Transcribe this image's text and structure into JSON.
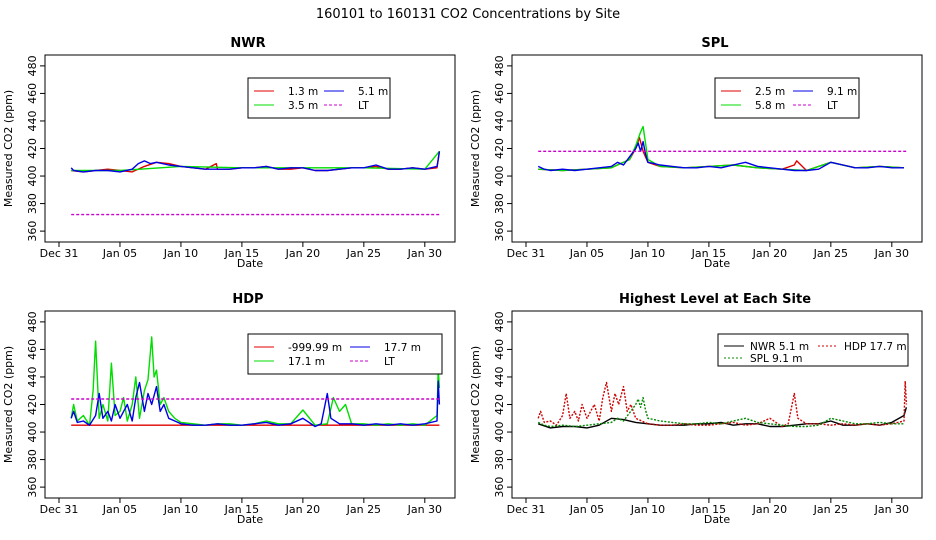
{
  "figure": {
    "title": "160101  to  160131 CO2 Concentrations by Site"
  },
  "colors": {
    "red": "#e00000",
    "green": "#00dd00",
    "blue": "#0000e6",
    "magenta": "#cc00cc",
    "darkgreen": "#008800",
    "black": "#000000",
    "darkred": "#cc0000"
  },
  "chart_data": [
    {
      "id": "nwr",
      "type": "line",
      "title": "NWR",
      "xlabel": "Date",
      "ylabel": "Measured CO2 (ppm)",
      "xlim": [
        0,
        31
      ],
      "ylim": [
        355,
        485
      ],
      "xticks": [
        0,
        5,
        10,
        15,
        20,
        25,
        30
      ],
      "xtick_labels": [
        "Dec 31",
        "Jan 05",
        "Jan 10",
        "Jan 15",
        "Jan 20",
        "Jan 25",
        "Jan 30"
      ],
      "yticks": [
        360,
        380,
        400,
        420,
        440,
        460,
        480
      ],
      "ytick_labels": [
        "360",
        "380",
        "400",
        "420",
        "440",
        "460",
        "480"
      ],
      "legend": [
        "1.3 m",
        "5.1 m",
        "3.5 m",
        "LT"
      ],
      "legend_position": "top-right",
      "series": [
        {
          "name": "1.3 m",
          "color": "red",
          "x": [
            1,
            2,
            3,
            4,
            5,
            6,
            7,
            8,
            9,
            10,
            11,
            12,
            12.9,
            13,
            14,
            15,
            16,
            17,
            18,
            19,
            20,
            21,
            22,
            23,
            24,
            25,
            26,
            27,
            28,
            29,
            30,
            31,
            31.2
          ],
          "y": [
            404,
            403,
            404,
            405,
            404,
            403,
            407,
            410,
            409,
            407,
            406,
            405,
            409,
            405,
            405,
            406,
            406,
            407,
            405,
            405,
            406,
            404,
            404,
            405,
            406,
            406,
            407,
            405,
            405,
            406,
            405,
            406,
            418
          ]
        },
        {
          "name": "3.5 m",
          "color": "green",
          "x": [
            1,
            5,
            10,
            15,
            20,
            25,
            30,
            31.2
          ],
          "y": [
            404,
            404,
            407,
            406,
            406,
            406,
            405,
            418
          ]
        },
        {
          "name": "5.1 m",
          "color": "blue",
          "x": [
            1,
            1.2,
            2,
            3,
            4,
            5,
            6,
            6.5,
            7,
            7.5,
            8,
            9,
            10,
            11,
            12,
            13,
            14,
            15,
            16,
            17,
            18,
            19,
            20,
            21,
            22,
            23,
            24,
            25,
            26,
            27,
            28,
            29,
            30,
            31,
            31.1,
            31.2
          ],
          "y": [
            406,
            404,
            403,
            404,
            404,
            403,
            405,
            409,
            411,
            409,
            410,
            408,
            407,
            406,
            405,
            405,
            405,
            406,
            406,
            407,
            405,
            406,
            406,
            404,
            404,
            405,
            406,
            406,
            408,
            405,
            405,
            406,
            405,
            407,
            412,
            418
          ]
        },
        {
          "name": "LT",
          "color": "magenta",
          "dashed": true,
          "x": [
            1,
            31.2
          ],
          "y": [
            372,
            372
          ]
        }
      ]
    },
    {
      "id": "spl",
      "type": "line",
      "title": "SPL",
      "xlabel": "Date",
      "ylabel": "Measured CO2 (ppm)",
      "xlim": [
        0,
        31
      ],
      "ylim": [
        355,
        485
      ],
      "xticks": [
        0,
        5,
        10,
        15,
        20,
        25,
        30
      ],
      "xtick_labels": [
        "Dec 31",
        "Jan 05",
        "Jan 10",
        "Jan 15",
        "Jan 20",
        "Jan 25",
        "Jan 30"
      ],
      "yticks": [
        360,
        380,
        400,
        420,
        440,
        460,
        480
      ],
      "ytick_labels": [
        "360",
        "380",
        "400",
        "420",
        "440",
        "460",
        "480"
      ],
      "legend": [
        "2.5 m",
        "9.1 m",
        "5.8 m",
        "LT"
      ],
      "legend_position": "top-right",
      "series": [
        {
          "name": "2.5 m",
          "color": "red",
          "x": [
            1,
            3,
            5,
            7,
            8.5,
            9,
            9.3,
            9.6,
            10,
            11,
            13,
            15,
            17,
            19,
            21,
            22,
            22.2,
            23,
            25,
            27,
            29,
            31
          ],
          "y": [
            405,
            404,
            405,
            406,
            412,
            420,
            428,
            418,
            410,
            407,
            406,
            407,
            408,
            406,
            405,
            408,
            411,
            404,
            410,
            406,
            407,
            406
          ]
        },
        {
          "name": "5.8 m",
          "color": "green",
          "x": [
            1,
            3,
            5,
            7,
            8.5,
            9,
            9.4,
            9.6,
            10,
            11,
            13,
            15,
            17,
            19,
            21,
            23,
            25,
            27,
            29,
            31
          ],
          "y": [
            405,
            404,
            405,
            406,
            412,
            422,
            432,
            436,
            412,
            407,
            406,
            407,
            408,
            406,
            405,
            404,
            410,
            406,
            407,
            406
          ]
        },
        {
          "name": "9.1 m",
          "color": "blue",
          "x": [
            1,
            1.5,
            2,
            3,
            4,
            5,
            6,
            7,
            7.5,
            8,
            8.5,
            9,
            9.2,
            9.4,
            9.6,
            9.8,
            10,
            10.5,
            11,
            12,
            13,
            14,
            15,
            16,
            17,
            18,
            19,
            20,
            21,
            22,
            23,
            24,
            25,
            26,
            27,
            28,
            29,
            30,
            31
          ],
          "y": [
            407,
            405,
            404,
            405,
            404,
            405,
            406,
            407,
            410,
            408,
            414,
            420,
            424,
            418,
            425,
            416,
            410,
            409,
            408,
            407,
            406,
            406,
            407,
            406,
            408,
            410,
            407,
            406,
            405,
            404,
            404,
            405,
            410,
            408,
            406,
            406,
            407,
            406,
            406
          ]
        },
        {
          "name": "LT",
          "color": "magenta",
          "dashed": true,
          "x": [
            1,
            31.2
          ],
          "y": [
            418,
            418
          ]
        }
      ]
    },
    {
      "id": "hdp",
      "type": "line",
      "title": "HDP",
      "xlabel": "Date",
      "ylabel": "Measured CO2 (ppm)",
      "xlim": [
        0,
        31
      ],
      "ylim": [
        355,
        485
      ],
      "xticks": [
        0,
        5,
        10,
        15,
        20,
        25,
        30
      ],
      "xtick_labels": [
        "Dec 31",
        "Jan 05",
        "Jan 10",
        "Jan 15",
        "Jan 20",
        "Jan 25",
        "Jan 30"
      ],
      "yticks": [
        360,
        380,
        400,
        420,
        440,
        460,
        480
      ],
      "ytick_labels": [
        "360",
        "380",
        "400",
        "420",
        "440",
        "460",
        "480"
      ],
      "legend": [
        "-999.99 m",
        "17.7 m",
        "17.1 m",
        "LT"
      ],
      "legend_position": "top-right",
      "series": [
        {
          "name": "-999.99 m",
          "color": "red",
          "x": [
            1,
            31.2
          ],
          "y": [
            405,
            405
          ]
        },
        {
          "name": "17.1 m",
          "color": "green",
          "x": [
            1,
            1.2,
            1.5,
            2,
            2.5,
            2.8,
            3,
            3.3,
            3.6,
            4,
            4.3,
            4.6,
            5,
            5.3,
            5.6,
            6,
            6.3,
            6.6,
            7,
            7.3,
            7.6,
            7.8,
            8,
            8.3,
            8.6,
            9,
            9.5,
            10,
            11,
            12,
            13,
            14,
            15,
            16,
            17,
            18,
            19,
            20,
            21,
            22,
            22.5,
            23,
            23.5,
            24,
            25,
            26,
            27,
            28,
            29,
            30,
            31,
            31.1,
            31.2
          ],
          "y": [
            410,
            420,
            408,
            412,
            405,
            430,
            466,
            410,
            420,
            408,
            450,
            412,
            415,
            425,
            408,
            420,
            440,
            410,
            430,
            438,
            469,
            440,
            445,
            420,
            425,
            415,
            410,
            407,
            406,
            405,
            406,
            406,
            405,
            406,
            408,
            406,
            406,
            416,
            405,
            406,
            425,
            415,
            420,
            406,
            406,
            405,
            406,
            405,
            406,
            405,
            412,
            446,
            432
          ]
        },
        {
          "name": "17.7 m",
          "color": "blue",
          "x": [
            1,
            1.2,
            1.5,
            2,
            2.5,
            3,
            3.3,
            3.6,
            4,
            4.3,
            4.6,
            5,
            5.3,
            5.6,
            6,
            6.3,
            6.6,
            7,
            7.3,
            7.6,
            8,
            8.3,
            8.6,
            9,
            9.5,
            10,
            11,
            12,
            13,
            14,
            15,
            16,
            17,
            18,
            19,
            20,
            21,
            21.5,
            22,
            22.3,
            23,
            24,
            25,
            26,
            27,
            28,
            29,
            30,
            31,
            31.1,
            31.2
          ],
          "y": [
            410,
            415,
            407,
            408,
            405,
            412,
            428,
            410,
            415,
            408,
            420,
            410,
            415,
            420,
            408,
            425,
            436,
            415,
            428,
            420,
            433,
            415,
            420,
            410,
            408,
            406,
            405,
            405,
            406,
            405,
            405,
            406,
            407,
            405,
            406,
            410,
            404,
            406,
            428,
            410,
            406,
            406,
            405,
            406,
            405,
            406,
            405,
            406,
            408,
            437,
            420
          ]
        },
        {
          "name": "LT",
          "color": "magenta",
          "dashed": true,
          "x": [
            1,
            31.2
          ],
          "y": [
            424,
            424
          ]
        }
      ]
    },
    {
      "id": "highest",
      "type": "line",
      "title": "Highest Level at Each Site",
      "xlabel": "Date",
      "ylabel": "Measured CO2 (ppm)",
      "xlim": [
        0,
        31
      ],
      "ylim": [
        355,
        485
      ],
      "xticks": [
        0,
        5,
        10,
        15,
        20,
        25,
        30
      ],
      "xtick_labels": [
        "Dec 31",
        "Jan 05",
        "Jan 10",
        "Jan 15",
        "Jan 20",
        "Jan 25",
        "Jan 30"
      ],
      "yticks": [
        360,
        380,
        400,
        420,
        440,
        460,
        480
      ],
      "ytick_labels": [
        "360",
        "380",
        "400",
        "420",
        "440",
        "460",
        "480"
      ],
      "legend": [
        "NWR  5.1 m",
        "HDP  17.7 m",
        "SPL  9.1 m"
      ],
      "legend_position": "top-right",
      "series": [
        {
          "name": "NWR  5.1 m",
          "color": "black",
          "x": [
            1,
            2,
            3,
            4,
            5,
            6,
            7,
            8,
            9,
            10,
            11,
            12,
            13,
            14,
            15,
            16,
            17,
            18,
            19,
            20,
            21,
            22,
            23,
            24,
            25,
            26,
            27,
            28,
            29,
            30,
            31,
            31.2
          ],
          "y": [
            406,
            403,
            404,
            404,
            403,
            405,
            410,
            409,
            407,
            406,
            405,
            405,
            405,
            406,
            406,
            407,
            405,
            406,
            406,
            404,
            404,
            405,
            406,
            406,
            408,
            405,
            405,
            406,
            405,
            407,
            412,
            418
          ]
        },
        {
          "name": "HDP  17.7 m",
          "color": "darkred",
          "dotted": true,
          "x": [
            1,
            1.2,
            1.5,
            2,
            2.5,
            3,
            3.3,
            3.6,
            4,
            4.3,
            4.6,
            5,
            5.3,
            5.6,
            6,
            6.3,
            6.6,
            7,
            7.3,
            7.6,
            8,
            8.3,
            8.6,
            9,
            9.5,
            10,
            11,
            12,
            13,
            14,
            15,
            16,
            17,
            18,
            19,
            20,
            21,
            21.5,
            22,
            22.3,
            23,
            24,
            25,
            26,
            27,
            28,
            29,
            30,
            31,
            31.1,
            31.2
          ],
          "y": [
            410,
            415,
            407,
            408,
            405,
            412,
            428,
            410,
            415,
            408,
            420,
            410,
            415,
            420,
            408,
            425,
            436,
            415,
            428,
            420,
            433,
            415,
            420,
            410,
            408,
            406,
            405,
            405,
            406,
            405,
            405,
            406,
            407,
            405,
            406,
            410,
            404,
            406,
            428,
            410,
            406,
            406,
            405,
            406,
            405,
            406,
            405,
            406,
            408,
            437,
            420
          ]
        },
        {
          "name": "SPL  9.1 m",
          "color": "darkgreen",
          "dotted": true,
          "x": [
            1,
            1.5,
            2,
            3,
            4,
            5,
            6,
            7,
            7.5,
            8,
            8.5,
            9,
            9.2,
            9.4,
            9.6,
            9.8,
            10,
            10.5,
            11,
            12,
            13,
            14,
            15,
            16,
            17,
            18,
            19,
            20,
            21,
            22,
            23,
            24,
            25,
            26,
            27,
            28,
            29,
            30,
            31
          ],
          "y": [
            407,
            405,
            404,
            405,
            404,
            405,
            406,
            407,
            410,
            408,
            414,
            420,
            424,
            418,
            425,
            416,
            410,
            409,
            408,
            407,
            406,
            406,
            407,
            406,
            408,
            410,
            407,
            406,
            405,
            404,
            404,
            405,
            410,
            408,
            406,
            406,
            407,
            406,
            406
          ]
        }
      ]
    }
  ]
}
